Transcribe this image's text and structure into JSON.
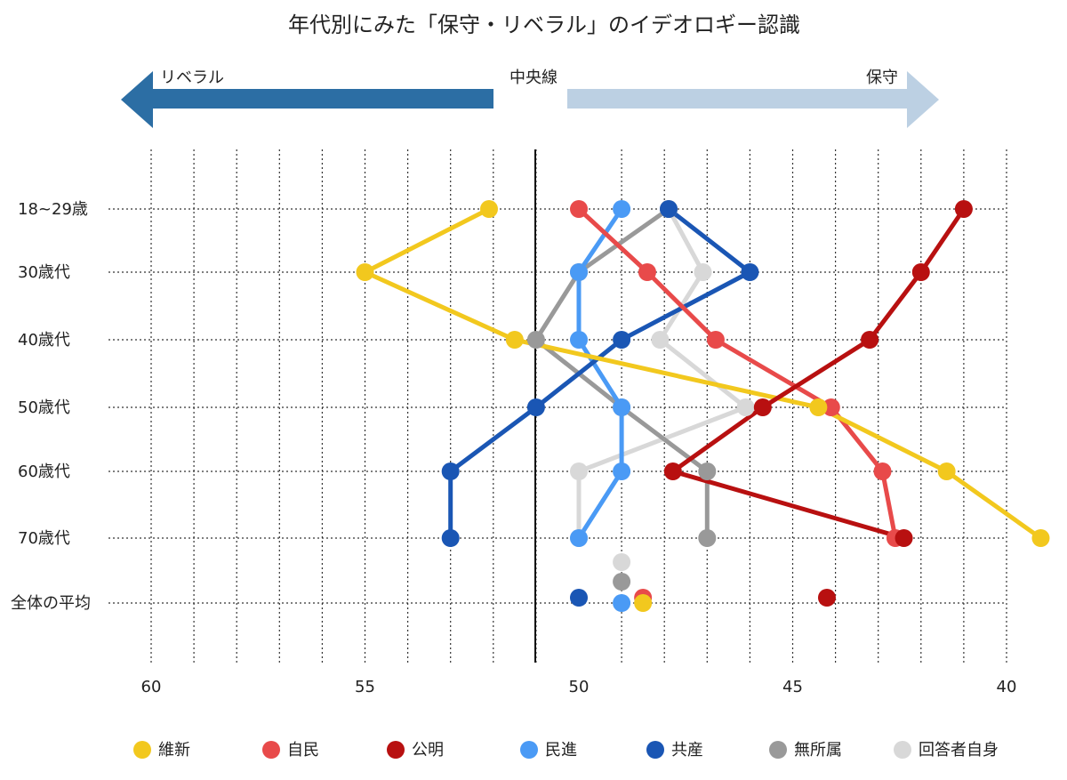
{
  "chart_data": {
    "type": "line",
    "title": "年代別にみた「保守・リベラル」のイデオロギー認識",
    "direction": {
      "left": "リベラル",
      "center": "中央線",
      "right": "保守"
    },
    "xlim": [
      60,
      40
    ],
    "x_ticks": [
      "60",
      "55",
      "50",
      "45",
      "40"
    ],
    "x_tick_values": [
      60,
      55,
      50,
      45,
      40
    ],
    "categories": [
      "18~29歳",
      "30歳代",
      "40歳代",
      "50歳代",
      "60歳代",
      "70歳代",
      "全体の平均"
    ],
    "grid": "on",
    "legend_position": "bottom",
    "series": [
      {
        "name": "維新",
        "color": "#f2c81e",
        "values": [
          52.1,
          55.0,
          51.5,
          44.4,
          41.4,
          39.2,
          48.5
        ]
      },
      {
        "name": "自民",
        "color": "#e84a4a",
        "values": [
          50.0,
          48.4,
          46.8,
          44.1,
          42.9,
          42.6,
          48.5
        ]
      },
      {
        "name": "公明",
        "color": "#b81010",
        "values": [
          41.0,
          42.0,
          43.2,
          45.7,
          47.8,
          42.4,
          44.2
        ]
      },
      {
        "name": "民進",
        "color": "#4a9af5",
        "values": [
          49.0,
          50.0,
          50.0,
          49.0,
          49.0,
          50.0,
          49.0
        ]
      },
      {
        "name": "共産",
        "color": "#1a56b4",
        "values": [
          47.9,
          46.0,
          49.0,
          51.0,
          53.0,
          53.0,
          50.0
        ]
      },
      {
        "name": "無所属",
        "color": "#999999",
        "values": [
          47.9,
          50.0,
          51.0,
          49.0,
          47.0,
          47.0,
          49.0
        ]
      },
      {
        "name": "回答者自身",
        "color": "#d8d8d8",
        "values": [
          47.9,
          47.1,
          48.1,
          46.1,
          50.0,
          50.0,
          49.0
        ]
      }
    ]
  },
  "legend": {
    "items": [
      {
        "label": "維新",
        "color": "#f2c81e"
      },
      {
        "label": "自民",
        "color": "#e84a4a"
      },
      {
        "label": "公明",
        "color": "#b81010"
      },
      {
        "label": "民進",
        "color": "#4a9af5"
      },
      {
        "label": "共産",
        "color": "#1a56b4"
      },
      {
        "label": "無所属",
        "color": "#999999"
      },
      {
        "label": "回答者自身",
        "color": "#d8d8d8"
      }
    ]
  },
  "arrows": {
    "liberal_color": "#2c6ea4",
    "conservative_color": "#bcd0e3"
  }
}
